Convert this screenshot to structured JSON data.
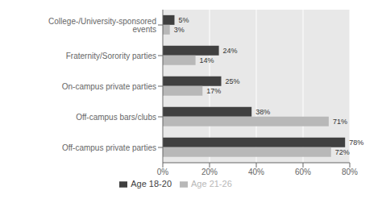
{
  "chart_data": {
    "type": "bar",
    "orientation": "horizontal",
    "categories": [
      "College-/University-sponsored events",
      "Fraternity/Sorority parties",
      "On-campus private parties",
      "Off-campus bars/clubs",
      "Off-campus private parties"
    ],
    "series": [
      {
        "name": "Age 18-20",
        "color": "#404040",
        "values": [
          5,
          24,
          25,
          38,
          78
        ],
        "value_labels": [
          "5%",
          "24%",
          "25%",
          "38%",
          "78%"
        ]
      },
      {
        "name": "Age 21-26",
        "color": "#b8b8b8",
        "values": [
          3,
          14,
          17,
          71,
          72
        ],
        "value_labels": [
          "3%",
          "14%",
          "17%",
          "71%",
          "72%"
        ]
      }
    ],
    "xlim": [
      0,
      80
    ],
    "xticks": [
      {
        "value": 0,
        "label": "0%"
      },
      {
        "value": 20,
        "label": "20%"
      },
      {
        "value": 40,
        "label": "40%"
      },
      {
        "value": 60,
        "label": "60%"
      },
      {
        "value": 80,
        "label": "80%"
      }
    ],
    "grid": true,
    "legend": "bottom",
    "data_labels": true
  }
}
